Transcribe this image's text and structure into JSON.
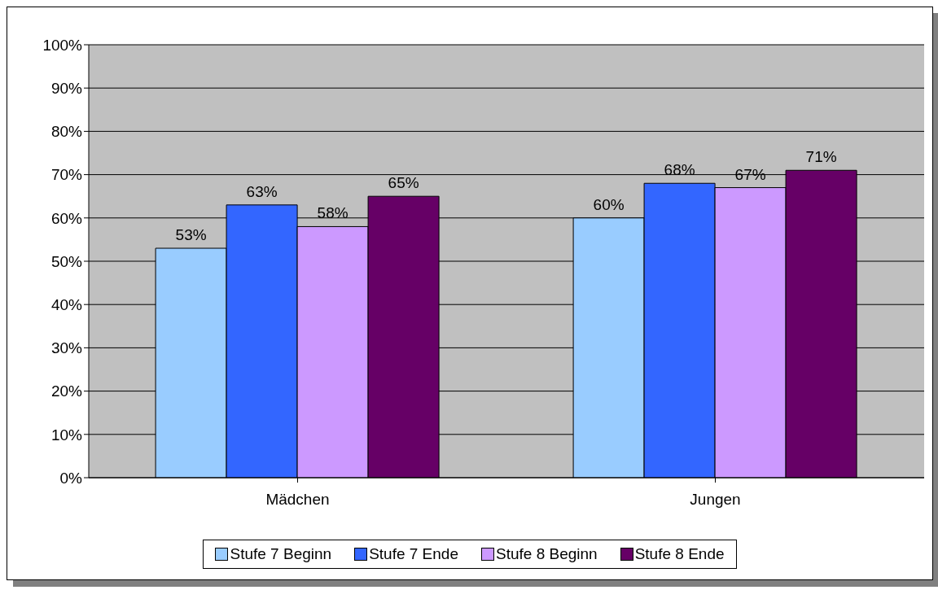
{
  "chart_data": {
    "type": "bar",
    "categories": [
      "Mädchen",
      "Jungen"
    ],
    "series": [
      {
        "name": "Stufe 7 Beginn",
        "color": "#99ccff",
        "values": [
          53,
          60
        ],
        "value_labels": [
          "53%",
          "60%"
        ]
      },
      {
        "name": "Stufe 7 Ende",
        "color": "#3366ff",
        "values": [
          63,
          68
        ],
        "value_labels": [
          "63%",
          "68%"
        ]
      },
      {
        "name": "Stufe 8 Beginn",
        "color": "#cc99ff",
        "values": [
          58,
          67
        ],
        "value_labels": [
          "58%",
          "67%"
        ]
      },
      {
        "name": "Stufe 8 Ende",
        "color": "#660066",
        "values": [
          65,
          71
        ],
        "value_labels": [
          "65%",
          "71%"
        ]
      }
    ],
    "ylim": [
      0,
      100
    ],
    "yticks": [
      {
        "value": 0,
        "label": "0%"
      },
      {
        "value": 10,
        "label": "10%"
      },
      {
        "value": 20,
        "label": "20%"
      },
      {
        "value": 30,
        "label": "30%"
      },
      {
        "value": 40,
        "label": "40%"
      },
      {
        "value": 50,
        "label": "50%"
      },
      {
        "value": 60,
        "label": "60%"
      },
      {
        "value": 70,
        "label": "70%"
      },
      {
        "value": 80,
        "label": "80%"
      },
      {
        "value": 90,
        "label": "90%"
      },
      {
        "value": 100,
        "label": "100%"
      }
    ],
    "grid": "y",
    "legend": "bottom"
  }
}
